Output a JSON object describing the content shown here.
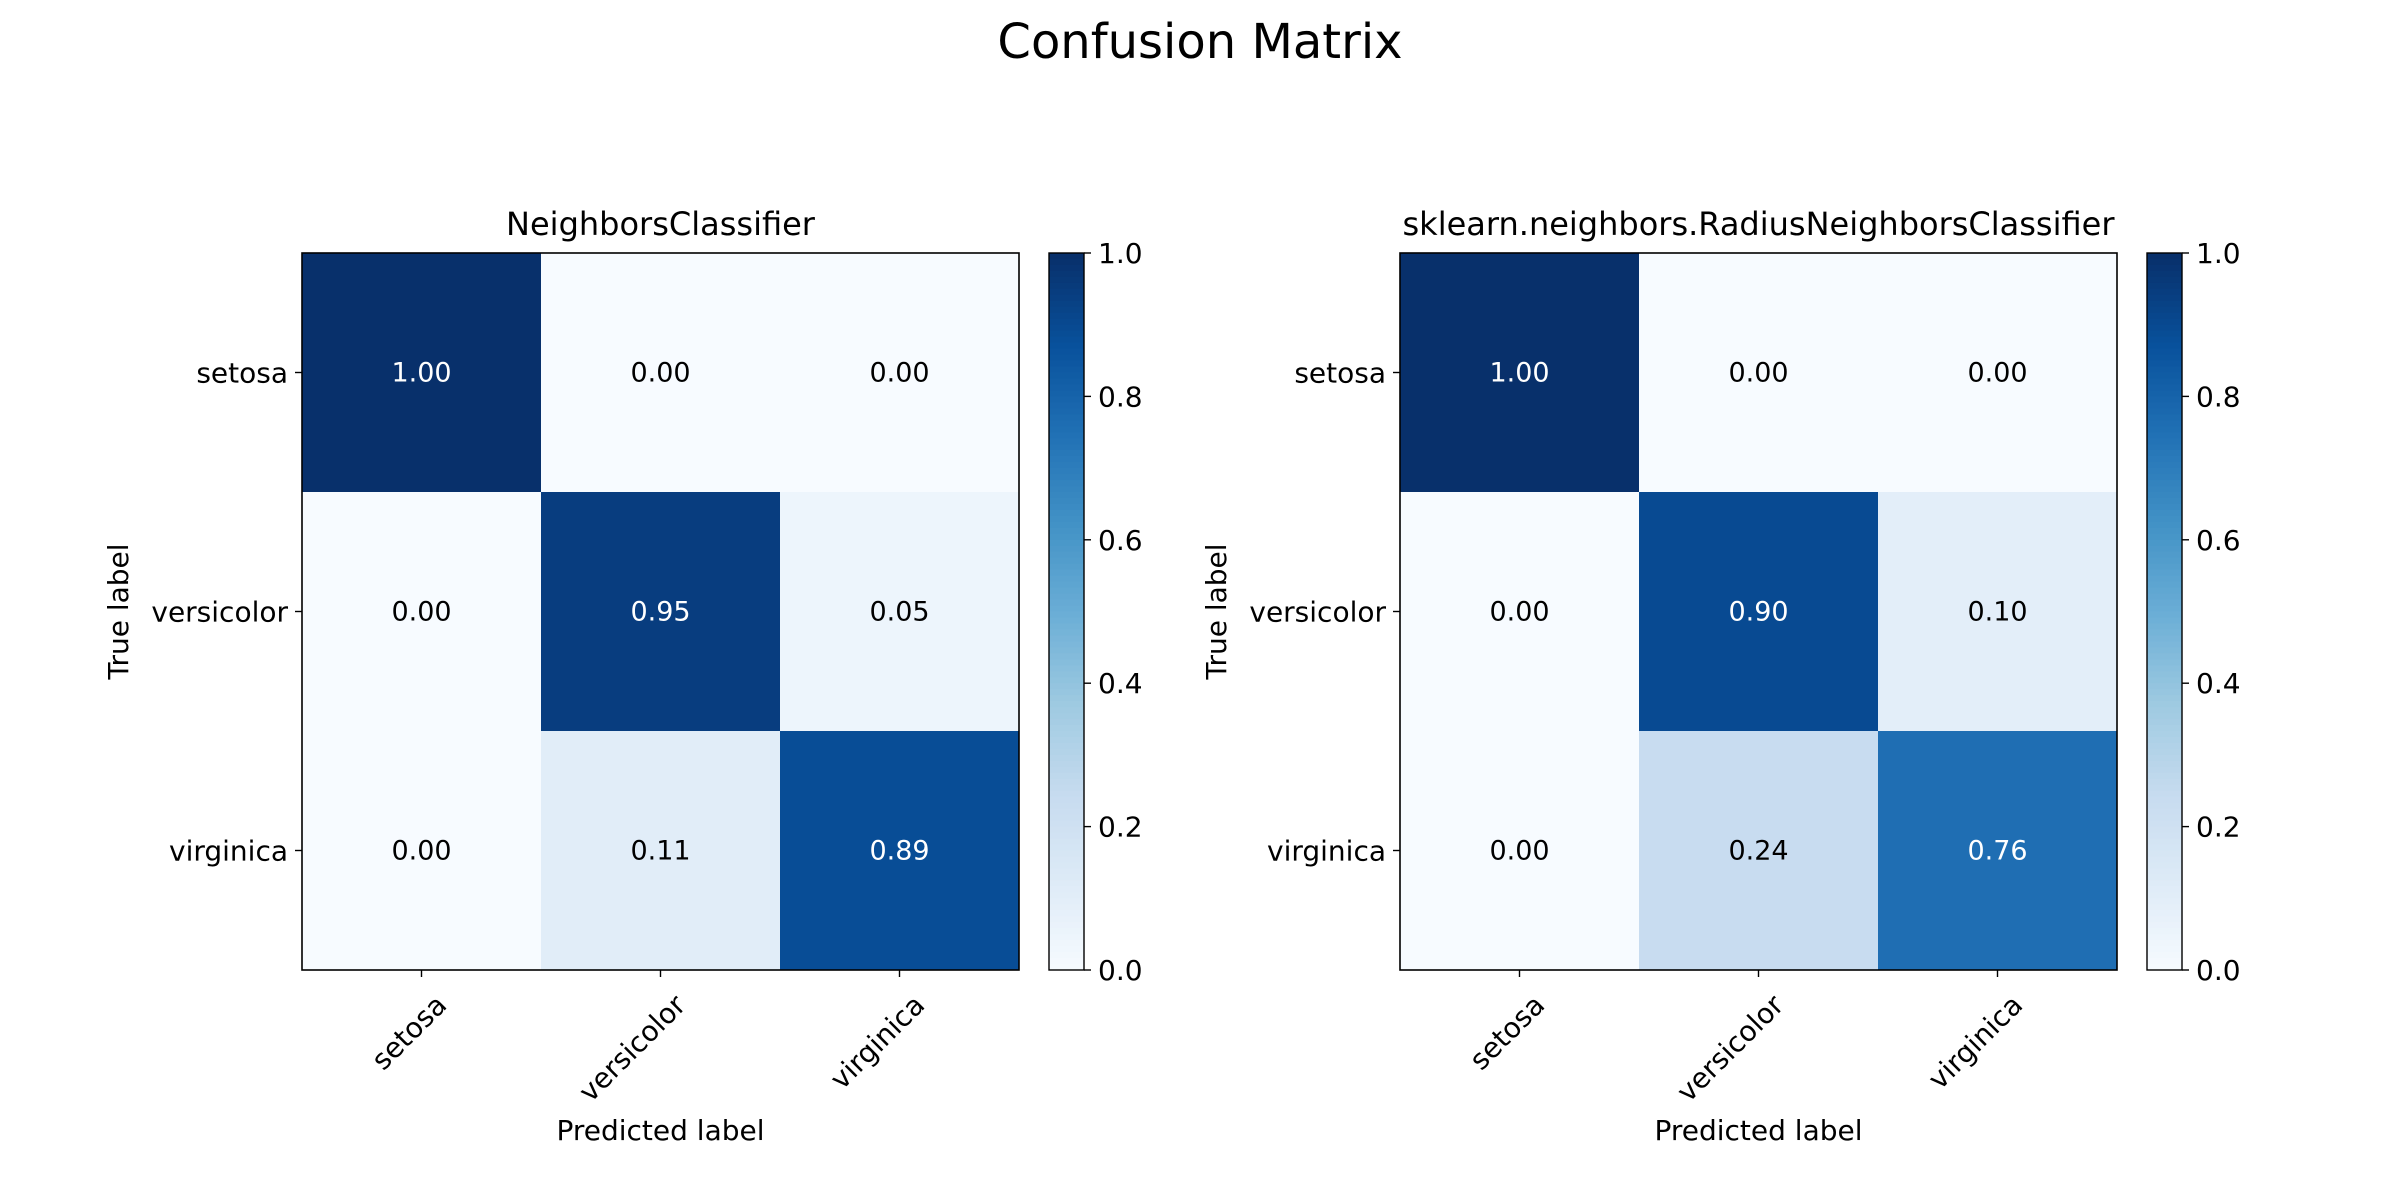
{
  "title": "Confusion Matrix",
  "chart_data": [
    {
      "type": "heatmap",
      "title": "NeighborsClassifier",
      "xlabel": "Predicted label",
      "ylabel": "True label",
      "x_categories": [
        "setosa",
        "versicolor",
        "virginica"
      ],
      "y_categories": [
        "setosa",
        "versicolor",
        "virginica"
      ],
      "values": [
        [
          1.0,
          0.0,
          0.0
        ],
        [
          0.0,
          0.95,
          0.05
        ],
        [
          0.0,
          0.11,
          0.89
        ]
      ],
      "value_labels": [
        [
          "1.00",
          "0.00",
          "0.00"
        ],
        [
          "0.00",
          "0.95",
          "0.05"
        ],
        [
          "0.00",
          "0.11",
          "0.89"
        ]
      ],
      "colormap": "Blues",
      "vmin": 0.0,
      "vmax": 1.0,
      "colorbar_ticks": [
        "0.0",
        "0.2",
        "0.4",
        "0.6",
        "0.8",
        "1.0"
      ]
    },
    {
      "type": "heatmap",
      "title": "sklearn.neighbors.RadiusNeighborsClassifier",
      "xlabel": "Predicted label",
      "ylabel": "True label",
      "x_categories": [
        "setosa",
        "versicolor",
        "virginica"
      ],
      "y_categories": [
        "setosa",
        "versicolor",
        "virginica"
      ],
      "values": [
        [
          1.0,
          0.0,
          0.0
        ],
        [
          0.0,
          0.9,
          0.1
        ],
        [
          0.0,
          0.24,
          0.76
        ]
      ],
      "value_labels": [
        [
          "1.00",
          "0.00",
          "0.00"
        ],
        [
          "0.00",
          "0.90",
          "0.10"
        ],
        [
          "0.00",
          "0.24",
          "0.76"
        ]
      ],
      "colormap": "Blues",
      "vmin": 0.0,
      "vmax": 1.0,
      "colorbar_ticks": [
        "0.0",
        "0.2",
        "0.4",
        "0.6",
        "0.8",
        "1.0"
      ]
    }
  ]
}
